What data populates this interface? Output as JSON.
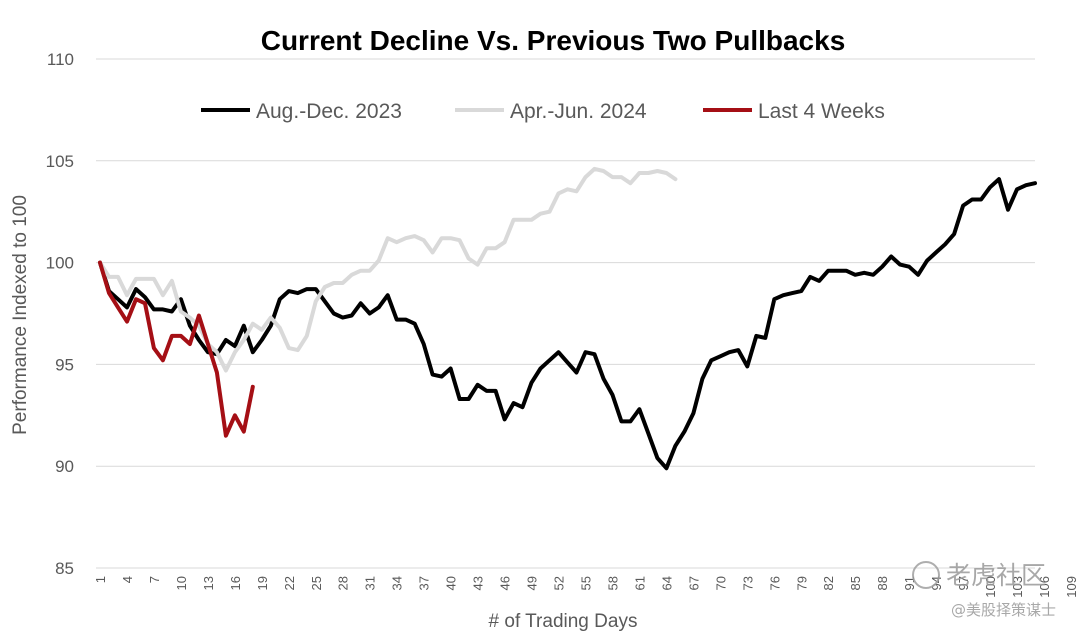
{
  "chart_data": {
    "type": "line",
    "title": "Current Decline Vs. Previous Two Pullbacks",
    "xlabel": "# of Trading Days",
    "ylabel": "Performance Indexed to 100",
    "ylim": [
      85,
      110
    ],
    "yticks": [
      85,
      90,
      95,
      100,
      105,
      110
    ],
    "xlim": [
      1,
      105
    ],
    "xtick_labels": [
      "1",
      "4",
      "7",
      "10",
      "13",
      "16",
      "19",
      "22",
      "25",
      "28",
      "31",
      "34",
      "37",
      "40",
      "43",
      "46",
      "49",
      "52",
      "55",
      "58",
      "61",
      "64",
      "67",
      "70",
      "73",
      "76",
      "79",
      "82",
      "85",
      "88",
      "91",
      "94",
      "97",
      "100",
      "103",
      "106",
      "109"
    ],
    "grid": true,
    "legend_position": "top",
    "series": [
      {
        "name": "Aug.-Dec. 2023",
        "color": "#000000",
        "x": [
          1,
          2,
          3,
          4,
          5,
          6,
          7,
          8,
          9,
          10,
          11,
          12,
          13,
          14,
          15,
          16,
          17,
          18,
          19,
          20,
          21,
          22,
          23,
          24,
          25,
          26,
          27,
          28,
          29,
          30,
          31,
          32,
          33,
          34,
          35,
          36,
          37,
          38,
          39,
          40,
          41,
          42,
          43,
          44,
          45,
          46,
          47,
          48,
          49,
          50,
          51,
          52,
          53,
          54,
          55,
          56,
          57,
          58,
          59,
          60,
          61,
          62,
          63,
          64,
          65,
          66,
          67,
          68,
          69,
          70,
          71,
          72,
          73,
          74,
          75,
          76,
          77,
          78,
          79,
          80,
          81,
          82,
          83,
          84,
          85,
          86,
          87,
          88,
          89,
          90,
          91,
          92,
          93,
          94,
          95,
          96,
          97,
          98,
          99,
          100,
          101,
          102,
          103,
          104,
          105
        ],
        "y": [
          100.0,
          98.6,
          98.2,
          97.8,
          98.7,
          98.3,
          97.7,
          97.7,
          97.6,
          98.2,
          96.9,
          96.2,
          95.6,
          95.5,
          96.2,
          95.9,
          96.9,
          95.6,
          96.2,
          96.9,
          98.2,
          98.6,
          98.5,
          98.7,
          98.7,
          98.1,
          97.5,
          97.3,
          97.4,
          98.0,
          97.5,
          97.8,
          98.4,
          97.2,
          97.2,
          97.0,
          96.0,
          94.5,
          94.4,
          94.8,
          93.3,
          93.3,
          94.0,
          93.7,
          93.7,
          92.3,
          93.1,
          92.9,
          94.1,
          94.8,
          95.2,
          95.6,
          95.1,
          94.6,
          95.6,
          95.5,
          94.3,
          93.5,
          92.2,
          92.2,
          92.8,
          91.6,
          90.4,
          89.9,
          91.0,
          91.7,
          92.6,
          94.3,
          95.2,
          95.4,
          95.6,
          95.7,
          94.9,
          96.4,
          96.3,
          98.2,
          98.4,
          98.5,
          98.6,
          99.3,
          99.1,
          99.6,
          99.6,
          99.6,
          99.4,
          99.5,
          99.4,
          99.8,
          100.3,
          99.9,
          99.8,
          99.4,
          100.1,
          100.5,
          100.9,
          101.4,
          102.8,
          103.1,
          103.1,
          103.7,
          104.1,
          102.6,
          103.6,
          103.8,
          103.9
        ]
      },
      {
        "name": "Apr.-Jun. 2024",
        "color": "#d9d9d9",
        "x": [
          1,
          2,
          3,
          4,
          5,
          6,
          7,
          8,
          9,
          10,
          11,
          12,
          13,
          14,
          15,
          16,
          17,
          18,
          19,
          20,
          21,
          22,
          23,
          24,
          25,
          26,
          27,
          28,
          29,
          30,
          31,
          32,
          33,
          34,
          35,
          36,
          37,
          38,
          39,
          40,
          41,
          42,
          43,
          44,
          45,
          46,
          47,
          48,
          49,
          50,
          51,
          52,
          53,
          54,
          55,
          56,
          57,
          58,
          59,
          60,
          61,
          62,
          63,
          64,
          65
        ],
        "y": [
          100.0,
          99.3,
          99.3,
          98.4,
          99.2,
          99.2,
          99.2,
          98.4,
          99.1,
          97.6,
          97.3,
          96.9,
          96.0,
          95.6,
          94.7,
          95.6,
          96.2,
          97.0,
          96.7,
          97.3,
          96.8,
          95.8,
          95.7,
          96.4,
          98.1,
          98.8,
          99.0,
          99.0,
          99.4,
          99.6,
          99.6,
          100.1,
          101.2,
          101.0,
          101.2,
          101.3,
          101.1,
          100.5,
          101.2,
          101.2,
          101.1,
          100.2,
          99.9,
          100.7,
          100.7,
          101.0,
          102.1,
          102.1,
          102.1,
          102.4,
          102.5,
          103.4,
          103.6,
          103.5,
          104.2,
          104.6,
          104.5,
          104.2,
          104.2,
          103.9,
          104.4,
          104.4,
          104.5,
          104.4,
          104.1
        ]
      },
      {
        "name": "Last 4 Weeks",
        "color": "#a50f15",
        "x": [
          1,
          2,
          3,
          4,
          5,
          6,
          7,
          8,
          9,
          10,
          11,
          12,
          13,
          14,
          15,
          16,
          17,
          18
        ],
        "y": [
          100.0,
          98.5,
          97.8,
          97.1,
          98.2,
          98.0,
          95.8,
          95.2,
          96.4,
          96.4,
          96.0,
          97.4,
          96.0,
          94.6,
          91.5,
          92.5,
          91.7,
          93.9
        ]
      }
    ]
  },
  "watermark": {
    "brand": "老虎社区",
    "author": "@美股择策谋士"
  }
}
